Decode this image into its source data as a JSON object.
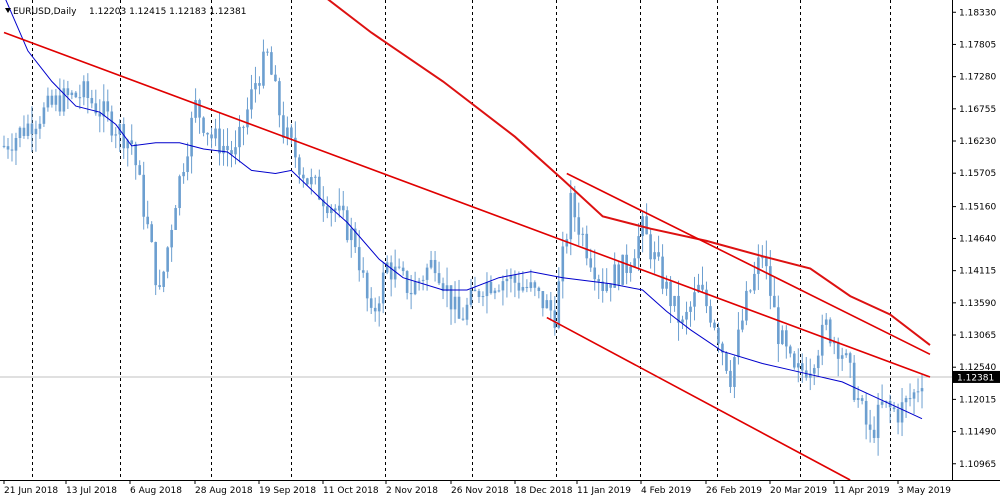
{
  "chart_data": {
    "type": "candlestick",
    "title": "EURUSD,Daily",
    "ohlc_text": "1.12203 1.12415 1.12183 1.12381",
    "current_price_label": "1.12381",
    "current_price": 1.12381,
    "ylim": [
      1.107,
      1.1853
    ],
    "y_ticks": [
      "1.18330",
      "1.17805",
      "1.17280",
      "1.16755",
      "1.16230",
      "1.15705",
      "1.15160",
      "1.14640",
      "1.14115",
      "1.13590",
      "1.13065",
      "1.12540",
      "1.12015",
      "1.11490",
      "1.10965"
    ],
    "x_tick_labels": [
      "21 Jun 2018",
      "13 Jul 2018",
      "6 Aug 2018",
      "28 Aug 2018",
      "19 Sep 2018",
      "11 Oct 2018",
      "2 Nov 2018",
      "26 Nov 2018",
      "18 Dec 2018",
      "11 Jan 2019",
      "4 Feb 2019",
      "26 Feb 2019",
      "20 Mar 2019",
      "11 Apr 2019",
      "3 May 2019"
    ],
    "vertical_grid_after_label_index": [
      1,
      2,
      3,
      4,
      5,
      6,
      7,
      8,
      9,
      10,
      11,
      12,
      13
    ],
    "grid": "vertical dashed",
    "series_candles": {
      "color": "#6c9fd0",
      "bars": 231,
      "anchors": [
        [
          0,
          1.1615
        ],
        [
          8,
          1.166
        ],
        [
          14,
          1.169
        ],
        [
          20,
          1.17
        ],
        [
          26,
          1.166
        ],
        [
          32,
          1.162
        ],
        [
          36,
          1.148
        ],
        [
          39,
          1.137
        ],
        [
          43,
          1.153
        ],
        [
          48,
          1.168
        ],
        [
          52,
          1.163
        ],
        [
          58,
          1.16
        ],
        [
          63,
          1.172
        ],
        [
          66,
          1.176
        ],
        [
          70,
          1.164
        ],
        [
          76,
          1.156
        ],
        [
          82,
          1.152
        ],
        [
          88,
          1.146
        ],
        [
          92,
          1.133
        ],
        [
          96,
          1.142
        ],
        [
          102,
          1.138
        ],
        [
          108,
          1.143
        ],
        [
          114,
          1.133
        ],
        [
          120,
          1.139
        ],
        [
          126,
          1.14
        ],
        [
          132,
          1.138
        ],
        [
          138,
          1.134
        ],
        [
          142,
          1.152
        ],
        [
          146,
          1.145
        ],
        [
          150,
          1.139
        ],
        [
          156,
          1.142
        ],
        [
          160,
          1.148
        ],
        [
          166,
          1.138
        ],
        [
          170,
          1.132
        ],
        [
          174,
          1.138
        ],
        [
          178,
          1.133
        ],
        [
          182,
          1.124
        ],
        [
          186,
          1.136
        ],
        [
          190,
          1.144
        ],
        [
          194,
          1.131
        ],
        [
          198,
          1.124
        ],
        [
          202,
          1.126
        ],
        [
          206,
          1.132
        ],
        [
          210,
          1.128
        ],
        [
          214,
          1.12
        ],
        [
          217,
          1.114
        ],
        [
          220,
          1.119
        ],
        [
          224,
          1.118
        ],
        [
          228,
          1.121
        ],
        [
          230,
          1.1238
        ]
      ]
    },
    "series_ma_fast": {
      "color": "#0000cc",
      "points": [
        [
          0,
          1.186
        ],
        [
          6,
          1.177
        ],
        [
          12,
          1.172
        ],
        [
          18,
          1.168
        ],
        [
          24,
          1.167
        ],
        [
          28,
          1.165
        ],
        [
          32,
          1.1615
        ],
        [
          38,
          1.162
        ],
        [
          44,
          1.162
        ],
        [
          50,
          1.161
        ],
        [
          56,
          1.1605
        ],
        [
          62,
          1.1575
        ],
        [
          68,
          1.157
        ],
        [
          72,
          1.1575
        ],
        [
          80,
          1.1525
        ],
        [
          86,
          1.149
        ],
        [
          94,
          1.143
        ],
        [
          100,
          1.14
        ],
        [
          110,
          1.138
        ],
        [
          116,
          1.138
        ],
        [
          124,
          1.14
        ],
        [
          132,
          1.141
        ],
        [
          140,
          1.14
        ],
        [
          146,
          1.1395
        ],
        [
          152,
          1.139
        ],
        [
          160,
          1.138
        ],
        [
          166,
          1.1345
        ],
        [
          172,
          1.1315
        ],
        [
          180,
          1.128
        ],
        [
          190,
          1.126
        ],
        [
          200,
          1.1245
        ],
        [
          210,
          1.123
        ],
        [
          220,
          1.12
        ],
        [
          230,
          1.117
        ]
      ]
    },
    "series_ma_slow": {
      "color": "#dd1111",
      "points": [
        [
          78,
          1.187
        ],
        [
          92,
          1.18
        ],
        [
          110,
          1.172
        ],
        [
          128,
          1.163
        ],
        [
          140,
          1.156
        ],
        [
          150,
          1.15
        ],
        [
          162,
          1.148
        ],
        [
          176,
          1.146
        ],
        [
          190,
          1.1435
        ],
        [
          202,
          1.1415
        ],
        [
          212,
          1.137
        ],
        [
          222,
          1.134
        ],
        [
          232,
          1.129
        ]
      ]
    },
    "trendlines": [
      {
        "name": "channel-upper-left",
        "color": "#e00000",
        "from": [
          0,
          1.18
        ],
        "to": [
          232,
          1.1238
        ]
      },
      {
        "name": "channel-upper-right",
        "color": "#e00000",
        "from": [
          141,
          1.157
        ],
        "to": [
          232,
          1.1275
        ]
      },
      {
        "name": "channel-lower",
        "color": "#e00000",
        "from": [
          136,
          1.1335
        ],
        "to": [
          212,
          1.107
        ]
      }
    ]
  }
}
